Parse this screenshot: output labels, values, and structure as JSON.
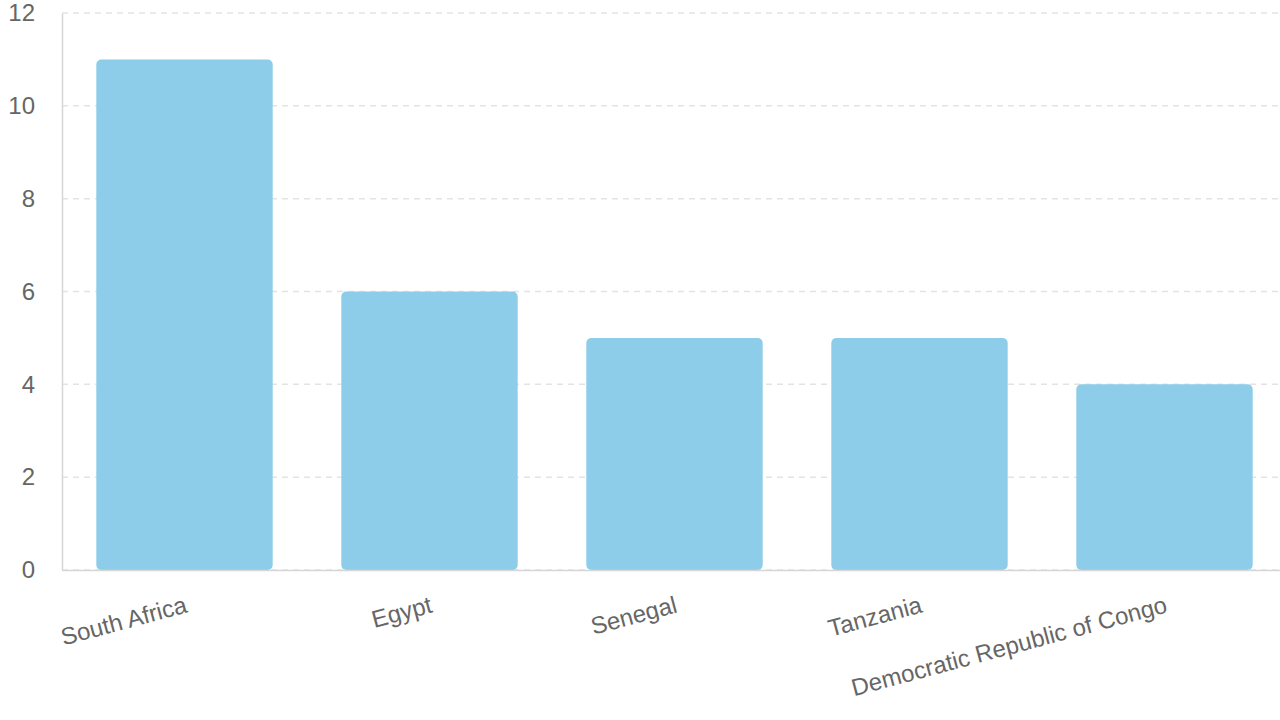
{
  "chart_data": {
    "type": "bar",
    "categories": [
      "South Africa",
      "Egypt",
      "Senegal",
      "Tanzania",
      "Democratic Republic of Congo"
    ],
    "values": [
      11,
      6,
      5,
      5,
      4
    ],
    "color": "#8ecdea",
    "ylim": [
      0,
      12
    ],
    "yticks": [
      0,
      2,
      4,
      6,
      8,
      10,
      12
    ],
    "grid": true
  }
}
